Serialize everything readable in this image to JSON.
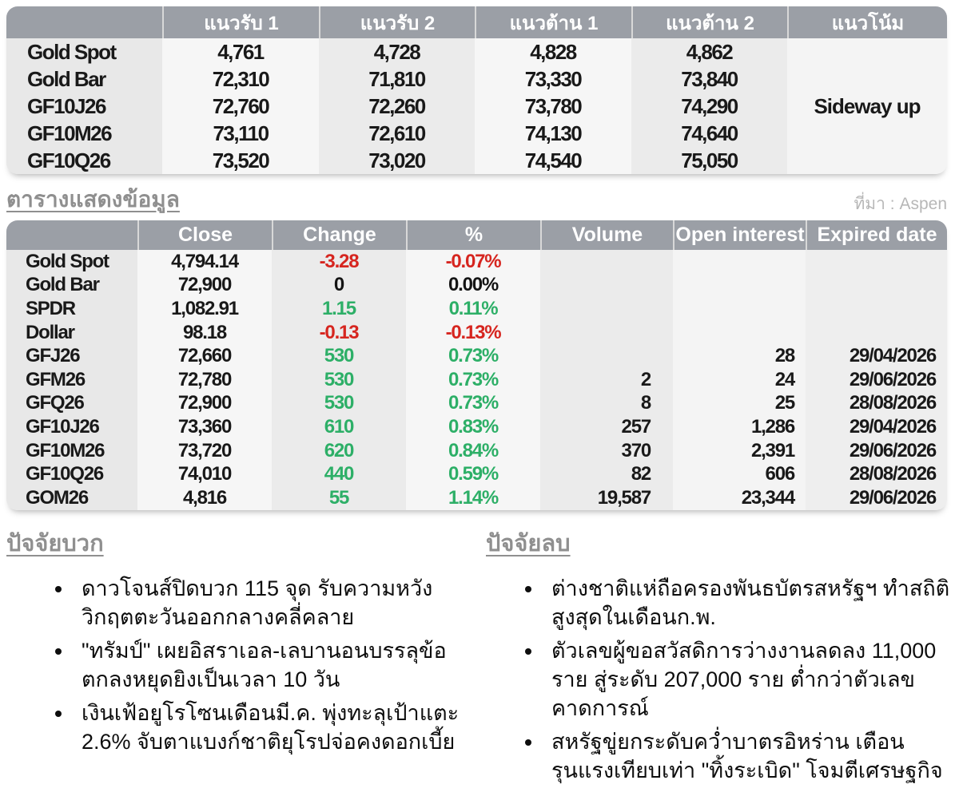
{
  "colors": {
    "up": "#2daf67",
    "down": "#d6251f",
    "flat": "#141414"
  },
  "levels_table": {
    "headers": [
      "",
      "แนวรับ 1",
      "แนวรับ 2",
      "แนวต้าน 1",
      "แนวต้าน 2",
      "แนวโน้ม"
    ],
    "trend": "Sideway up",
    "rows": [
      {
        "name": "Gold Spot",
        "s1": "4,761",
        "s2": "4,728",
        "r1": "4,828",
        "r2": "4,862"
      },
      {
        "name": "Gold Bar",
        "s1": "72,310",
        "s2": "71,810",
        "r1": "73,330",
        "r2": "73,840"
      },
      {
        "name": "GF10J26",
        "s1": "72,760",
        "s2": "72,260",
        "r1": "73,780",
        "r2": "74,290"
      },
      {
        "name": "GF10M26",
        "s1": "73,110",
        "s2": "72,610",
        "r1": "74,130",
        "r2": "74,640"
      },
      {
        "name": "GF10Q26",
        "s1": "73,520",
        "s2": "73,020",
        "r1": "74,540",
        "r2": "75,050"
      }
    ]
  },
  "data_table": {
    "title": "ตารางแสดงข้อมูล",
    "source": "ที่มา : Aspen",
    "headers": [
      "",
      "Close",
      "Change",
      "%",
      "Volume",
      "Open interest",
      "Expired date"
    ],
    "rows": [
      {
        "name": "Gold Spot",
        "close": "4,794.14",
        "change": "-3.28",
        "pct": "-0.07%",
        "dir": "down",
        "volume": "",
        "oi": "",
        "expired": ""
      },
      {
        "name": "Gold Bar",
        "close": "72,900",
        "change": "0",
        "pct": "0.00%",
        "dir": "flat",
        "volume": "",
        "oi": "",
        "expired": ""
      },
      {
        "name": "SPDR",
        "close": "1,082.91",
        "change": "1.15",
        "pct": "0.11%",
        "dir": "up",
        "volume": "",
        "oi": "",
        "expired": ""
      },
      {
        "name": "Dollar",
        "close": "98.18",
        "change": "-0.13",
        "pct": "-0.13%",
        "dir": "down",
        "volume": "",
        "oi": "",
        "expired": ""
      },
      {
        "name": "GFJ26",
        "close": "72,660",
        "change": "530",
        "pct": "0.73%",
        "dir": "up",
        "volume": "",
        "oi": "28",
        "expired": "29/04/2026"
      },
      {
        "name": "GFM26",
        "close": "72,780",
        "change": "530",
        "pct": "0.73%",
        "dir": "up",
        "volume": "2",
        "oi": "24",
        "expired": "29/06/2026"
      },
      {
        "name": "GFQ26",
        "close": "72,900",
        "change": "530",
        "pct": "0.73%",
        "dir": "up",
        "volume": "8",
        "oi": "25",
        "expired": "28/08/2026"
      },
      {
        "name": "GF10J26",
        "close": "73,360",
        "change": "610",
        "pct": "0.83%",
        "dir": "up",
        "volume": "257",
        "oi": "1,286",
        "expired": "29/04/2026"
      },
      {
        "name": "GF10M26",
        "close": "73,720",
        "change": "620",
        "pct": "0.84%",
        "dir": "up",
        "volume": "370",
        "oi": "2,391",
        "expired": "29/06/2026"
      },
      {
        "name": "GF10Q26",
        "close": "74,010",
        "change": "440",
        "pct": "0.59%",
        "dir": "up",
        "volume": "82",
        "oi": "606",
        "expired": "28/08/2026"
      },
      {
        "name": "GOM26",
        "close": "4,816",
        "change": "55",
        "pct": "1.14%",
        "dir": "up",
        "volume": "19,587",
        "oi": "23,344",
        "expired": "29/06/2026"
      }
    ]
  },
  "factors_positive": {
    "title": "ปัจจัยบวก",
    "items": [
      "ดาวโจนส์ปิดบวก 115 จุด รับความหวังวิกฤตตะวันออกกลางคลี่คลาย",
      "\"ทรัมป์\" เผยอิสราเอล-เลบานอนบรรลุข้อตกลงหยุดยิงเป็นเวลา 10 วัน",
      "เงินเฟ้อยูโรโซนเดือนมี.ค. พุ่งทะลุเป้าแตะ 2.6% จับตาแบงก์ชาติยุโรปจ่อคงดอกเบี้ย"
    ]
  },
  "factors_negative": {
    "title": "ปัจจัยลบ",
    "items": [
      "ต่างชาติแห่ถือครองพันธบัตรสหรัฐฯ ทำสถิติสูงสุดในเดือนก.พ.",
      "ตัวเลขผู้ขอสวัสดิการว่างงานลดลง 11,000 ราย สู่ระดับ 207,000 ราย ต่ำกว่าตัวเลขคาดการณ์",
      "สหรัฐขู่ยกระดับคว่ำบาตรอิหร่าน เตือนรุนแรงเทียบเท่า \"ทิ้งระเบิด\" โจมตีเศรษฐกิจ"
    ]
  }
}
